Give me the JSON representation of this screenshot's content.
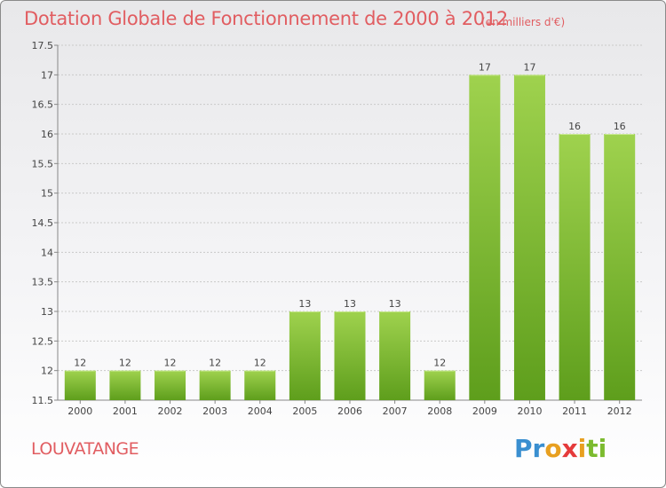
{
  "chart_data": {
    "type": "bar",
    "title": "Dotation Globale de Fonctionnement de 2000 à 2012",
    "unit": "(en milliers d'€)",
    "categories": [
      "2000",
      "2001",
      "2002",
      "2003",
      "2004",
      "2005",
      "2006",
      "2007",
      "2008",
      "2009",
      "2010",
      "2011",
      "2012"
    ],
    "values": [
      12,
      12,
      12,
      12,
      12,
      13,
      13,
      13,
      12,
      17,
      17,
      16,
      16
    ],
    "value_labels": [
      "12",
      "12",
      "12",
      "12",
      "12",
      "13",
      "13",
      "13",
      "12",
      "17",
      "17",
      "16",
      "16"
    ],
    "ylim": [
      11.5,
      17.5
    ],
    "yticks": [
      11.5,
      12,
      12.5,
      13,
      13.5,
      14,
      14.5,
      15,
      15.5,
      16,
      16.5,
      17,
      17.5
    ],
    "ytick_labels": [
      "11.5",
      "12",
      "12.5",
      "13",
      "13.5",
      "14",
      "14.5",
      "15",
      "15.5",
      "16",
      "16.5",
      "17",
      "17.5"
    ],
    "grid": true,
    "bar_color": "#7cbb2f",
    "xlabel": "",
    "ylabel": ""
  },
  "place_name": "LOUVATANGE",
  "logo": {
    "parts": [
      "Pr",
      "o",
      "x",
      "i",
      "ti"
    ]
  },
  "colors": {
    "title": "#e15d61",
    "logo_blue": "#3a8fd0",
    "logo_orange": "#e8a020",
    "logo_red": "#e53b3b",
    "logo_green": "#7cbb2f"
  }
}
